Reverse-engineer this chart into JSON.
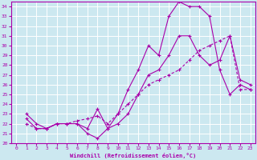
{
  "xlabel": "Windchill (Refroidissement éolien,°C)",
  "bg_color": "#cce8f0",
  "grid_color": "#ffffff",
  "line_color": "#aa00aa",
  "xlim": [
    -0.5,
    23.5
  ],
  "ylim": [
    20,
    34.5
  ],
  "xticks": [
    0,
    1,
    2,
    3,
    4,
    5,
    6,
    7,
    8,
    9,
    10,
    11,
    12,
    13,
    14,
    15,
    16,
    17,
    18,
    19,
    20,
    21,
    22,
    23
  ],
  "yticks": [
    20,
    21,
    22,
    23,
    24,
    25,
    26,
    27,
    28,
    29,
    30,
    31,
    32,
    33,
    34
  ],
  "line1_x": [
    1,
    2,
    3,
    4,
    5,
    6,
    7,
    8,
    9,
    10,
    11,
    12,
    13,
    14,
    15,
    16,
    17,
    18,
    19,
    20,
    21,
    22,
    23
  ],
  "line1_y": [
    23,
    22,
    21.5,
    22,
    22,
    22,
    21.5,
    23.5,
    21.5,
    23,
    25.5,
    27.5,
    30,
    29,
    33,
    34.5,
    34,
    34,
    33,
    27.5,
    25,
    26,
    25.5
  ],
  "line2_x": [
    1,
    2,
    3,
    4,
    5,
    6,
    7,
    8,
    9,
    10,
    11,
    12,
    13,
    14,
    15,
    16,
    17,
    18,
    19,
    20,
    21,
    22,
    23
  ],
  "line2_y": [
    22.5,
    21.5,
    21.5,
    22,
    22,
    22,
    21,
    20.5,
    21.5,
    22,
    23,
    25,
    27,
    27.5,
    29,
    31,
    31,
    29,
    28,
    28.5,
    31,
    26.5,
    26
  ],
  "line3_x": [
    1,
    2,
    3,
    4,
    5,
    6,
    7,
    8,
    9,
    10,
    11,
    12,
    13,
    14,
    15,
    16,
    17,
    18,
    19,
    20,
    21,
    22,
    23
  ],
  "line3_y": [
    22,
    21.5,
    21.5,
    22,
    22,
    22.3,
    22.5,
    22.8,
    22,
    23,
    24,
    25,
    26,
    26.5,
    27,
    27.5,
    28.5,
    29.5,
    30,
    30.5,
    31,
    25.5,
    25.5
  ]
}
